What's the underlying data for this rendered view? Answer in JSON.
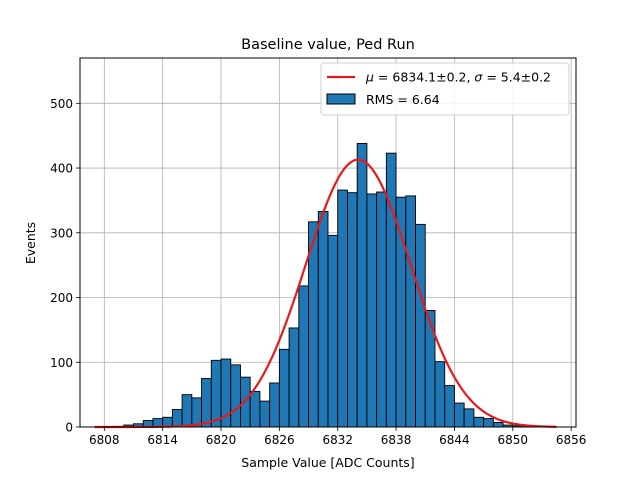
{
  "chart_data": {
    "type": "bar",
    "title": "Baseline value, Ped Run",
    "xlabel": "Sample Value [ADC Counts]",
    "ylabel": "Events",
    "xlim": [
      6805.5,
      6856.5
    ],
    "ylim": [
      0,
      570
    ],
    "xticks": [
      6808,
      6814,
      6820,
      6826,
      6832,
      6838,
      6844,
      6850,
      6856
    ],
    "yticks": [
      0,
      100,
      200,
      300,
      400,
      500
    ],
    "grid": true,
    "legend_position": "top-right",
    "histogram": {
      "name": "RMS = 6.64",
      "color": "#1f77b4",
      "edgecolor": "#000000",
      "bin_width": 1,
      "bin_left_edges": [
        6809,
        6810,
        6811,
        6812,
        6813,
        6814,
        6815,
        6816,
        6817,
        6818,
        6819,
        6820,
        6821,
        6822,
        6823,
        6824,
        6825,
        6826,
        6827,
        6828,
        6829,
        6830,
        6831,
        6832,
        6833,
        6834,
        6835,
        6836,
        6837,
        6838,
        6839,
        6840,
        6841,
        6842,
        6843,
        6844,
        6845,
        6846,
        6847,
        6848,
        6849,
        6850,
        6851,
        6852,
        6853
      ],
      "counts": [
        1,
        3,
        5,
        10,
        13,
        15,
        27,
        50,
        45,
        75,
        103,
        105,
        96,
        77,
        55,
        40,
        68,
        120,
        153,
        218,
        317,
        333,
        296,
        366,
        362,
        438,
        360,
        363,
        423,
        355,
        357,
        313,
        180,
        101,
        64,
        37,
        28,
        15,
        13,
        7,
        3,
        2,
        2,
        1,
        1
      ]
    },
    "fit": {
      "name": "μ = 6834.1±0.2, σ = 5.4±0.2",
      "label_parts": {
        "mu_symbol": "μ",
        "mu_text": " = 6834.1±0.2, ",
        "sigma_symbol": "σ",
        "sigma_text": " = 5.4±0.2"
      },
      "color": "#e41a1c",
      "mu": 6834.1,
      "sigma": 5.4,
      "amplitude": 413,
      "x_range": [
        6807,
        6854.5
      ]
    }
  }
}
